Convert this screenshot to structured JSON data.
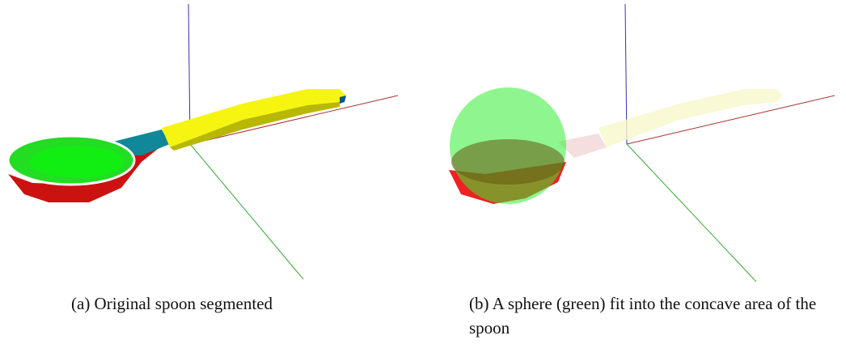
{
  "figures": [
    {
      "caption": "(a) Original spoon segmented"
    },
    {
      "caption": "(b) A sphere (green) fit into the concave area of the spoon"
    }
  ]
}
